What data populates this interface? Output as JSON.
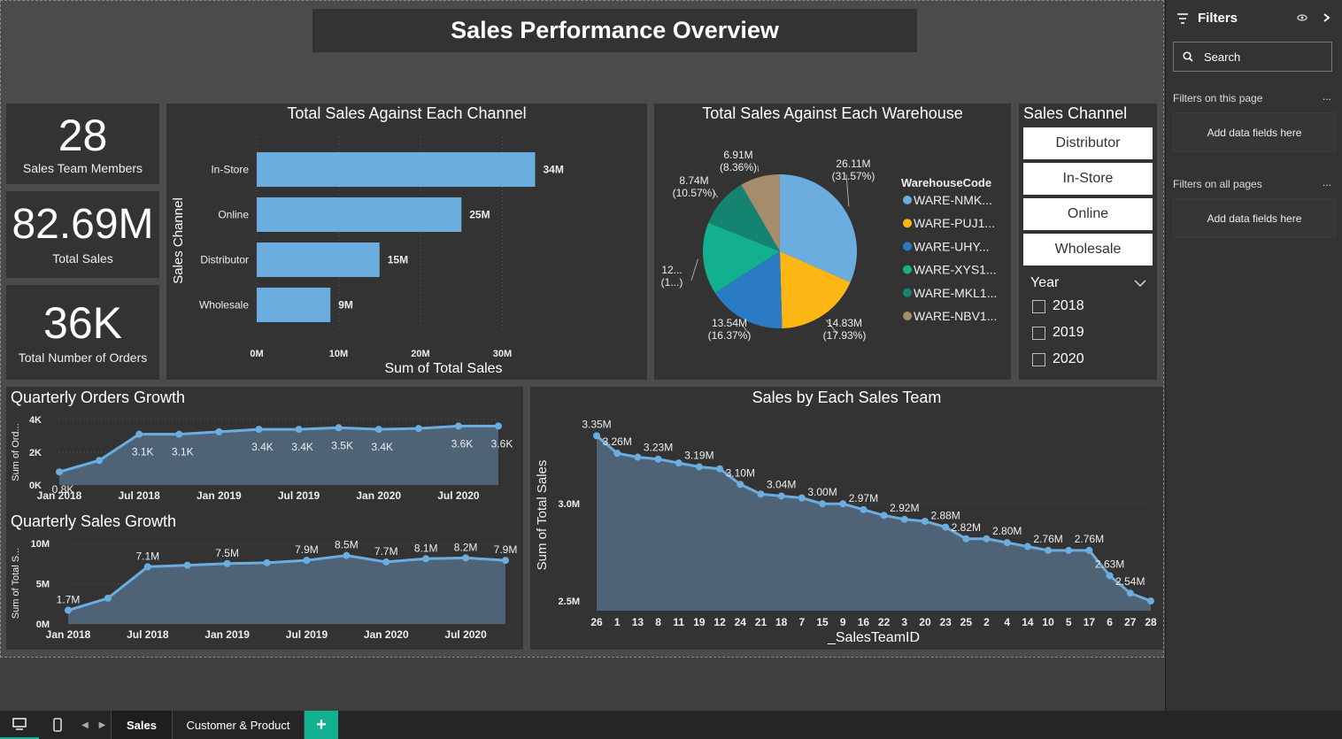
{
  "header": {
    "title": "Sales Performance Overview"
  },
  "kpis": [
    {
      "value": "28",
      "label": "Sales Team Members"
    },
    {
      "value": "82.69M",
      "label": "Total Sales"
    },
    {
      "value": "36K",
      "label": "Total Number of Orders"
    }
  ],
  "channel_chart": {
    "title": "Total Sales Against Each Channel",
    "ylabel": "Sales Channel",
    "xlabel": "Sum of Total Sales"
  },
  "warehouse_chart": {
    "title": "Total Sales Against Each Warehouse",
    "legend_title": "WarehouseCode"
  },
  "slicer": {
    "title": "Sales Channel",
    "options": [
      "Distributor",
      "In-Store",
      "Online",
      "Wholesale"
    ],
    "year_label": "Year",
    "years": [
      "2018",
      "2019",
      "2020"
    ]
  },
  "orders_chart": {
    "title": "Quarterly Orders Growth",
    "ylabel": "Sum of Ord..."
  },
  "sales_growth_chart": {
    "title": "Quarterly Sales Growth",
    "ylabel": "Sum of Total S..."
  },
  "team_chart": {
    "title": "Sales by Each Sales Team",
    "ylabel": "Sum of Total Sales",
    "xlabel": "_SalesTeamID"
  },
  "chart_data": [
    {
      "id": "channel",
      "type": "bar",
      "orientation": "horizontal",
      "title": "Total Sales Against Each Channel",
      "categories": [
        "In-Store",
        "Online",
        "Distributor",
        "Wholesale"
      ],
      "values": [
        34,
        25,
        15,
        9
      ],
      "labels": [
        "34M",
        "25M",
        "15M",
        "9M"
      ],
      "xticks": [
        "0M",
        "10M",
        "20M",
        "30M"
      ],
      "xlim": [
        0,
        36
      ],
      "xlabel": "Sum of Total Sales",
      "ylabel": "Sales Channel",
      "color": "#6CADE0"
    },
    {
      "id": "warehouse",
      "type": "pie",
      "title": "Total Sales Against Each Warehouse",
      "legend_title": "WarehouseCode",
      "slices": [
        {
          "name": "WARE-NMK...",
          "value": 26.11,
          "pct": 31.57,
          "label": "26.11M",
          "pct_label": "(31.57%)",
          "color": "#6CADE0"
        },
        {
          "name": "WARE-PUJ1...",
          "value": 14.83,
          "pct": 17.93,
          "label": "14.83M",
          "pct_label": "(17.93%)",
          "color": "#FDB714"
        },
        {
          "name": "WARE-UHY...",
          "value": 13.54,
          "pct": 16.37,
          "label": "13.54M",
          "pct_label": "(16.37%)",
          "color": "#2A7BC3"
        },
        {
          "name": "WARE-XYS1...",
          "value": 12.5,
          "pct": 15.2,
          "label": "12...",
          "pct_label": "(1...)",
          "color": "#12B08F"
        },
        {
          "name": "WARE-MKL1...",
          "value": 8.74,
          "pct": 10.57,
          "label": "8.74M",
          "pct_label": "(10.57%)",
          "color": "#148370"
        },
        {
          "name": "WARE-NBV1...",
          "value": 6.91,
          "pct": 8.36,
          "label": "6.91M",
          "pct_label": "(8.36%)",
          "color": "#A58C6B"
        }
      ]
    },
    {
      "id": "orders",
      "type": "area",
      "title": "Quarterly Orders Growth",
      "ylabel": "Sum of Ord...",
      "values": [
        0.8,
        1.5,
        3.1,
        3.1,
        3.25,
        3.4,
        3.4,
        3.5,
        3.4,
        3.45,
        3.6,
        3.6
      ],
      "point_labels": [
        "0.8K",
        "",
        "3.1K",
        "3.1K",
        "",
        "3.4K",
        "3.4K",
        "3.5K",
        "3.4K",
        "",
        "3.6K",
        "3.6K"
      ],
      "xticks": [
        {
          "i": 0,
          "label": "Jan 2018"
        },
        {
          "i": 2,
          "label": "Jul 2018"
        },
        {
          "i": 4,
          "label": "Jan 2019"
        },
        {
          "i": 6,
          "label": "Jul 2019"
        },
        {
          "i": 8,
          "label": "Jan 2020"
        },
        {
          "i": 10,
          "label": "Jul 2020"
        }
      ],
      "yticks": [
        "0K",
        "2K",
        "4K"
      ],
      "ylim": [
        0,
        4
      ],
      "color": "#6CADE0"
    },
    {
      "id": "sales_growth",
      "type": "area",
      "title": "Quarterly Sales Growth",
      "ylabel": "Sum of Total S...",
      "values": [
        1.7,
        3.2,
        7.1,
        7.3,
        7.5,
        7.6,
        7.9,
        8.5,
        7.7,
        8.1,
        8.2,
        7.9
      ],
      "point_labels": [
        "1.7M",
        "",
        "7.1M",
        "",
        "7.5M",
        "",
        "7.9M",
        "8.5M",
        "7.7M",
        "8.1M",
        "8.2M",
        "7.9M"
      ],
      "xticks": [
        {
          "i": 0,
          "label": "Jan 2018"
        },
        {
          "i": 2,
          "label": "Jul 2018"
        },
        {
          "i": 4,
          "label": "Jan 2019"
        },
        {
          "i": 6,
          "label": "Jul 2019"
        },
        {
          "i": 8,
          "label": "Jan 2020"
        },
        {
          "i": 10,
          "label": "Jul 2020"
        }
      ],
      "yticks": [
        "0M",
        "5M",
        "10M"
      ],
      "ylim": [
        0,
        10
      ],
      "color": "#6CADE0"
    },
    {
      "id": "team",
      "type": "area",
      "title": "Sales by Each Sales Team",
      "xlabel": "_SalesTeamID",
      "ylabel": "Sum of Total Sales",
      "categories": [
        "26",
        "1",
        "13",
        "8",
        "11",
        "19",
        "12",
        "24",
        "21",
        "18",
        "7",
        "15",
        "9",
        "16",
        "22",
        "3",
        "20",
        "23",
        "25",
        "2",
        "4",
        "14",
        "10",
        "5",
        "17",
        "6",
        "27",
        "28"
      ],
      "values": [
        3.35,
        3.26,
        3.24,
        3.23,
        3.21,
        3.19,
        3.18,
        3.1,
        3.05,
        3.04,
        3.03,
        3.0,
        3.0,
        2.97,
        2.94,
        2.92,
        2.91,
        2.88,
        2.82,
        2.82,
        2.8,
        2.78,
        2.76,
        2.76,
        2.76,
        2.63,
        2.54,
        2.5
      ],
      "point_labels": [
        "3.35M",
        "3.26M",
        "",
        "3.23M",
        "",
        "3.19M",
        "",
        "3.10M",
        "",
        "3.04M",
        "",
        "3.00M",
        "",
        "2.97M",
        "",
        "2.92M",
        "",
        "2.88M",
        "2.82M",
        "",
        "2.80M",
        "",
        "2.76M",
        "",
        "2.76M",
        "2.63M",
        "2.54M",
        ""
      ],
      "yticks": [
        {
          "v": 3.0,
          "label": "3.0M"
        },
        {
          "v": 2.5,
          "label": "2.5M"
        }
      ],
      "ylim": [
        2.45,
        3.42
      ],
      "color": "#6CADE0"
    }
  ],
  "filters_pane": {
    "title": "Filters",
    "search_placeholder": "Search",
    "this_page": "Filters on this page",
    "all_pages": "Filters on all pages",
    "add_fields": "Add data fields here",
    "dots": "..."
  },
  "tabs": [
    "Sales",
    "Customer & Product"
  ],
  "add_tab": "+"
}
